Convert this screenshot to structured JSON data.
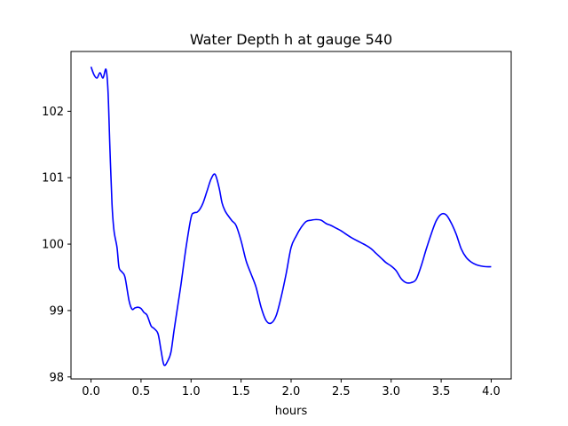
{
  "chart_data": {
    "type": "line",
    "title": "Water Depth h at gauge 540",
    "xlabel": "hours",
    "ylabel": "",
    "xlim": [
      -0.2,
      4.2
    ],
    "ylim": [
      97.97,
      102.9
    ],
    "xticks": [
      0.0,
      0.5,
      1.0,
      1.5,
      2.0,
      2.5,
      3.0,
      3.5,
      4.0
    ],
    "xtick_labels": [
      "0.0",
      "0.5",
      "1.0",
      "1.5",
      "2.0",
      "2.5",
      "3.0",
      "3.5",
      "4.0"
    ],
    "yticks": [
      98,
      99,
      100,
      101,
      102
    ],
    "ytick_labels": [
      "98",
      "99",
      "100",
      "101",
      "102"
    ],
    "grid": false,
    "series": [
      {
        "color": "#0000ff",
        "x": [
          0.0,
          0.03,
          0.06,
          0.09,
          0.12,
          0.15,
          0.17,
          0.19,
          0.21,
          0.23,
          0.26,
          0.28,
          0.31,
          0.34,
          0.38,
          0.41,
          0.44,
          0.47,
          0.5,
          0.53,
          0.56,
          0.6,
          0.63,
          0.67,
          0.7,
          0.73,
          0.77,
          0.8,
          0.83,
          0.87,
          0.9,
          0.95,
          1.0,
          1.03,
          1.06,
          1.09,
          1.12,
          1.16,
          1.2,
          1.24,
          1.28,
          1.31,
          1.34,
          1.37,
          1.41,
          1.45,
          1.5,
          1.55,
          1.6,
          1.65,
          1.7,
          1.75,
          1.8,
          1.85,
          1.9,
          1.95,
          2.0,
          2.05,
          2.1,
          2.15,
          2.2,
          2.25,
          2.3,
          2.35,
          2.4,
          2.45,
          2.5,
          2.6,
          2.7,
          2.75,
          2.8,
          2.85,
          2.9,
          2.95,
          3.0,
          3.05,
          3.1,
          3.15,
          3.2,
          3.25,
          3.3,
          3.35,
          3.4,
          3.45,
          3.5,
          3.55,
          3.6,
          3.65,
          3.7,
          3.75,
          3.8,
          3.85,
          3.9,
          3.95,
          4.0
        ],
        "y": [
          102.67,
          102.55,
          102.5,
          102.58,
          102.5,
          102.63,
          102.3,
          101.4,
          100.6,
          100.2,
          99.95,
          99.65,
          99.58,
          99.5,
          99.15,
          99.02,
          99.04,
          99.05,
          99.03,
          98.97,
          98.93,
          98.77,
          98.73,
          98.65,
          98.4,
          98.18,
          98.25,
          98.38,
          98.7,
          99.1,
          99.4,
          99.95,
          100.4,
          100.47,
          100.48,
          100.53,
          100.62,
          100.8,
          100.98,
          101.05,
          100.85,
          100.62,
          100.5,
          100.43,
          100.35,
          100.28,
          100.05,
          99.75,
          99.55,
          99.35,
          99.05,
          98.85,
          98.81,
          98.92,
          99.2,
          99.55,
          99.95,
          100.12,
          100.25,
          100.34,
          100.36,
          100.37,
          100.36,
          100.31,
          100.28,
          100.24,
          100.2,
          100.1,
          100.02,
          99.98,
          99.93,
          99.86,
          99.79,
          99.72,
          99.67,
          99.6,
          99.48,
          99.42,
          99.42,
          99.47,
          99.67,
          99.92,
          100.15,
          100.35,
          100.45,
          100.44,
          100.32,
          100.15,
          99.93,
          99.8,
          99.73,
          99.69,
          99.67,
          99.66,
          99.66
        ]
      }
    ]
  }
}
